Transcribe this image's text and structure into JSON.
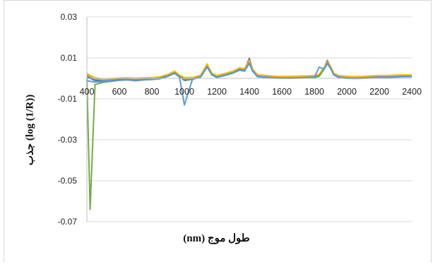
{
  "chart_data": {
    "type": "line",
    "xlabel": "طول موج (nm)",
    "ylabel": "(log (1/R)) جذب",
    "xlim": [
      400,
      2400
    ],
    "ylim": [
      -0.07,
      0.03
    ],
    "x_ticks": [
      "400",
      "600",
      "800",
      "1000",
      "1200",
      "1400",
      "1600",
      "1800",
      "2000",
      "2200",
      "2400"
    ],
    "y_ticks": [
      "0.03",
      "0.01",
      "-0.01",
      "-0.03",
      "-0.05",
      "-0.07"
    ],
    "grid": "horizontal",
    "legend": "none",
    "x": [
      400,
      420,
      450,
      500,
      550,
      600,
      650,
      700,
      750,
      800,
      850,
      900,
      940,
      970,
      1000,
      1050,
      1100,
      1140,
      1170,
      1200,
      1250,
      1300,
      1340,
      1370,
      1400,
      1420,
      1450,
      1500,
      1550,
      1600,
      1650,
      1700,
      1750,
      1800,
      1830,
      1860,
      1880,
      1900,
      1920,
      1950,
      2000,
      2050,
      2100,
      2150,
      2200,
      2250,
      2300,
      2350,
      2400
    ],
    "series": [
      {
        "color": "#2e75b6",
        "values": [
          0.001,
          0.0005,
          -0.0008,
          -0.0012,
          -0.0009,
          -0.0005,
          -0.0004,
          -0.0008,
          -0.0004,
          -0.0002,
          0.0003,
          0.0015,
          0.003,
          0.001,
          -0.001,
          -0.0005,
          0.001,
          0.006,
          0.002,
          0.0008,
          0.0018,
          0.003,
          0.0045,
          0.004,
          0.0098,
          0.004,
          0.0012,
          0.0008,
          0.0005,
          0.0004,
          0.0004,
          0.0005,
          0.0006,
          0.0008,
          0.0015,
          0.005,
          0.0088,
          0.0055,
          0.002,
          0.0008,
          0.0004,
          0.0003,
          0.0004,
          0.0006,
          0.0008,
          0.0008,
          0.001,
          0.0012,
          0.0012
        ]
      },
      {
        "color": "#ed7d31",
        "values": [
          0.002,
          0.001,
          0.0,
          -0.0006,
          -0.0004,
          -0.0001,
          0.0,
          -0.0002,
          0.0,
          0.0002,
          0.0006,
          0.0018,
          0.0035,
          0.0015,
          0.0003,
          0.0002,
          0.0015,
          0.007,
          0.0025,
          0.0012,
          0.0022,
          0.0035,
          0.005,
          0.0045,
          0.0092,
          0.0045,
          0.0016,
          0.0012,
          0.0009,
          0.0008,
          0.0008,
          0.0009,
          0.001,
          0.0012,
          0.0018,
          0.0052,
          0.0085,
          0.0058,
          0.0024,
          0.0012,
          0.0008,
          0.0007,
          0.0008,
          0.001,
          0.0012,
          0.0012,
          0.0014,
          0.0015,
          0.0016
        ]
      },
      {
        "color": "#a5a5a5",
        "values": [
          0.0015,
          0.0008,
          -0.0004,
          -0.0009,
          -0.0007,
          -0.0003,
          -0.0002,
          -0.0006,
          -0.0002,
          0.0,
          0.0004,
          0.0016,
          0.0032,
          0.0012,
          0.0,
          0.0,
          0.0012,
          0.0065,
          0.0022,
          0.001,
          0.002,
          0.0032,
          0.0047,
          0.0042,
          0.0085,
          0.0042,
          0.0014,
          0.001,
          0.0007,
          0.0006,
          0.0006,
          0.0007,
          0.0008,
          0.001,
          0.0016,
          0.005,
          0.008,
          0.0055,
          0.0022,
          0.001,
          0.0006,
          0.0005,
          0.0006,
          0.0008,
          0.001,
          0.001,
          0.0012,
          0.0013,
          0.0014
        ]
      },
      {
        "color": "#ffc000",
        "values": [
          0.0025,
          0.0015,
          0.0003,
          -0.0003,
          -0.0001,
          0.0002,
          0.0003,
          0.0001,
          0.0003,
          0.0004,
          0.0008,
          0.002,
          0.0036,
          0.0016,
          0.0004,
          0.0004,
          0.0016,
          0.0068,
          0.0026,
          0.0014,
          0.0024,
          0.0036,
          0.0052,
          0.0047,
          0.0082,
          0.0046,
          0.0018,
          0.0014,
          0.0011,
          0.001,
          0.001,
          0.0011,
          0.0012,
          0.0014,
          0.002,
          0.0054,
          0.0078,
          0.0058,
          0.0026,
          0.0014,
          0.001,
          0.0009,
          0.001,
          0.0012,
          0.0014,
          0.0014,
          0.0016,
          0.0017,
          0.0018
        ]
      },
      {
        "color": "#4472c4",
        "values": [
          0.0005,
          0.0,
          -0.001,
          -0.0014,
          -0.0011,
          -0.0007,
          -0.0006,
          -0.001,
          -0.0006,
          -0.0004,
          0.0001,
          0.0012,
          0.0027,
          0.0008,
          -0.0003,
          -0.0003,
          0.0008,
          0.0058,
          0.0018,
          0.0006,
          0.0016,
          0.0028,
          0.0043,
          0.0038,
          0.0076,
          0.0038,
          0.001,
          0.0006,
          0.0003,
          0.0002,
          0.0002,
          0.0003,
          0.0004,
          0.0006,
          0.0012,
          0.0046,
          0.0075,
          0.005,
          0.0018,
          0.0006,
          0.0002,
          0.0001,
          0.0002,
          0.0004,
          0.0006,
          0.0006,
          0.0008,
          0.001,
          0.001
        ]
      },
      {
        "color": "#70ad47",
        "values": [
          0.0,
          -0.064,
          -0.003,
          -0.002,
          -0.0015,
          -0.001,
          -0.0008,
          -0.0012,
          -0.0008,
          -0.0006,
          -0.0002,
          0.001,
          0.0025,
          0.0006,
          -0.0005,
          -0.0005,
          0.0006,
          0.0055,
          0.0016,
          0.0004,
          0.0014,
          0.0026,
          0.004,
          0.0035,
          0.0072,
          0.0035,
          0.0008,
          0.0004,
          0.0001,
          0.0,
          0.0,
          0.0001,
          0.0002,
          0.0004,
          0.001,
          0.0044,
          0.0072,
          0.0048,
          0.0016,
          0.0004,
          0.0,
          -0.0001,
          0.0,
          0.0002,
          0.0004,
          0.0004,
          0.0006,
          0.0008,
          0.0008
        ]
      },
      {
        "color": "#5b9bd5",
        "values": [
          -0.001,
          -0.0015,
          -0.0018,
          -0.0016,
          -0.0013,
          -0.0009,
          -0.0008,
          -0.0011,
          -0.0007,
          -0.0005,
          -0.0001,
          0.0011,
          0.0026,
          0.0005,
          -0.013,
          -0.0004,
          0.0007,
          0.0056,
          0.0017,
          0.0005,
          0.0015,
          0.0027,
          0.0041,
          0.0036,
          0.0074,
          0.0036,
          0.0009,
          0.0005,
          0.0002,
          0.0001,
          0.0001,
          0.0002,
          0.0003,
          0.0005,
          0.0055,
          0.0045,
          0.0073,
          0.0049,
          0.0017,
          0.0005,
          0.0001,
          0.0,
          0.0001,
          0.0003,
          0.0005,
          0.0005,
          0.0007,
          0.0009,
          0.0009
        ]
      }
    ]
  }
}
